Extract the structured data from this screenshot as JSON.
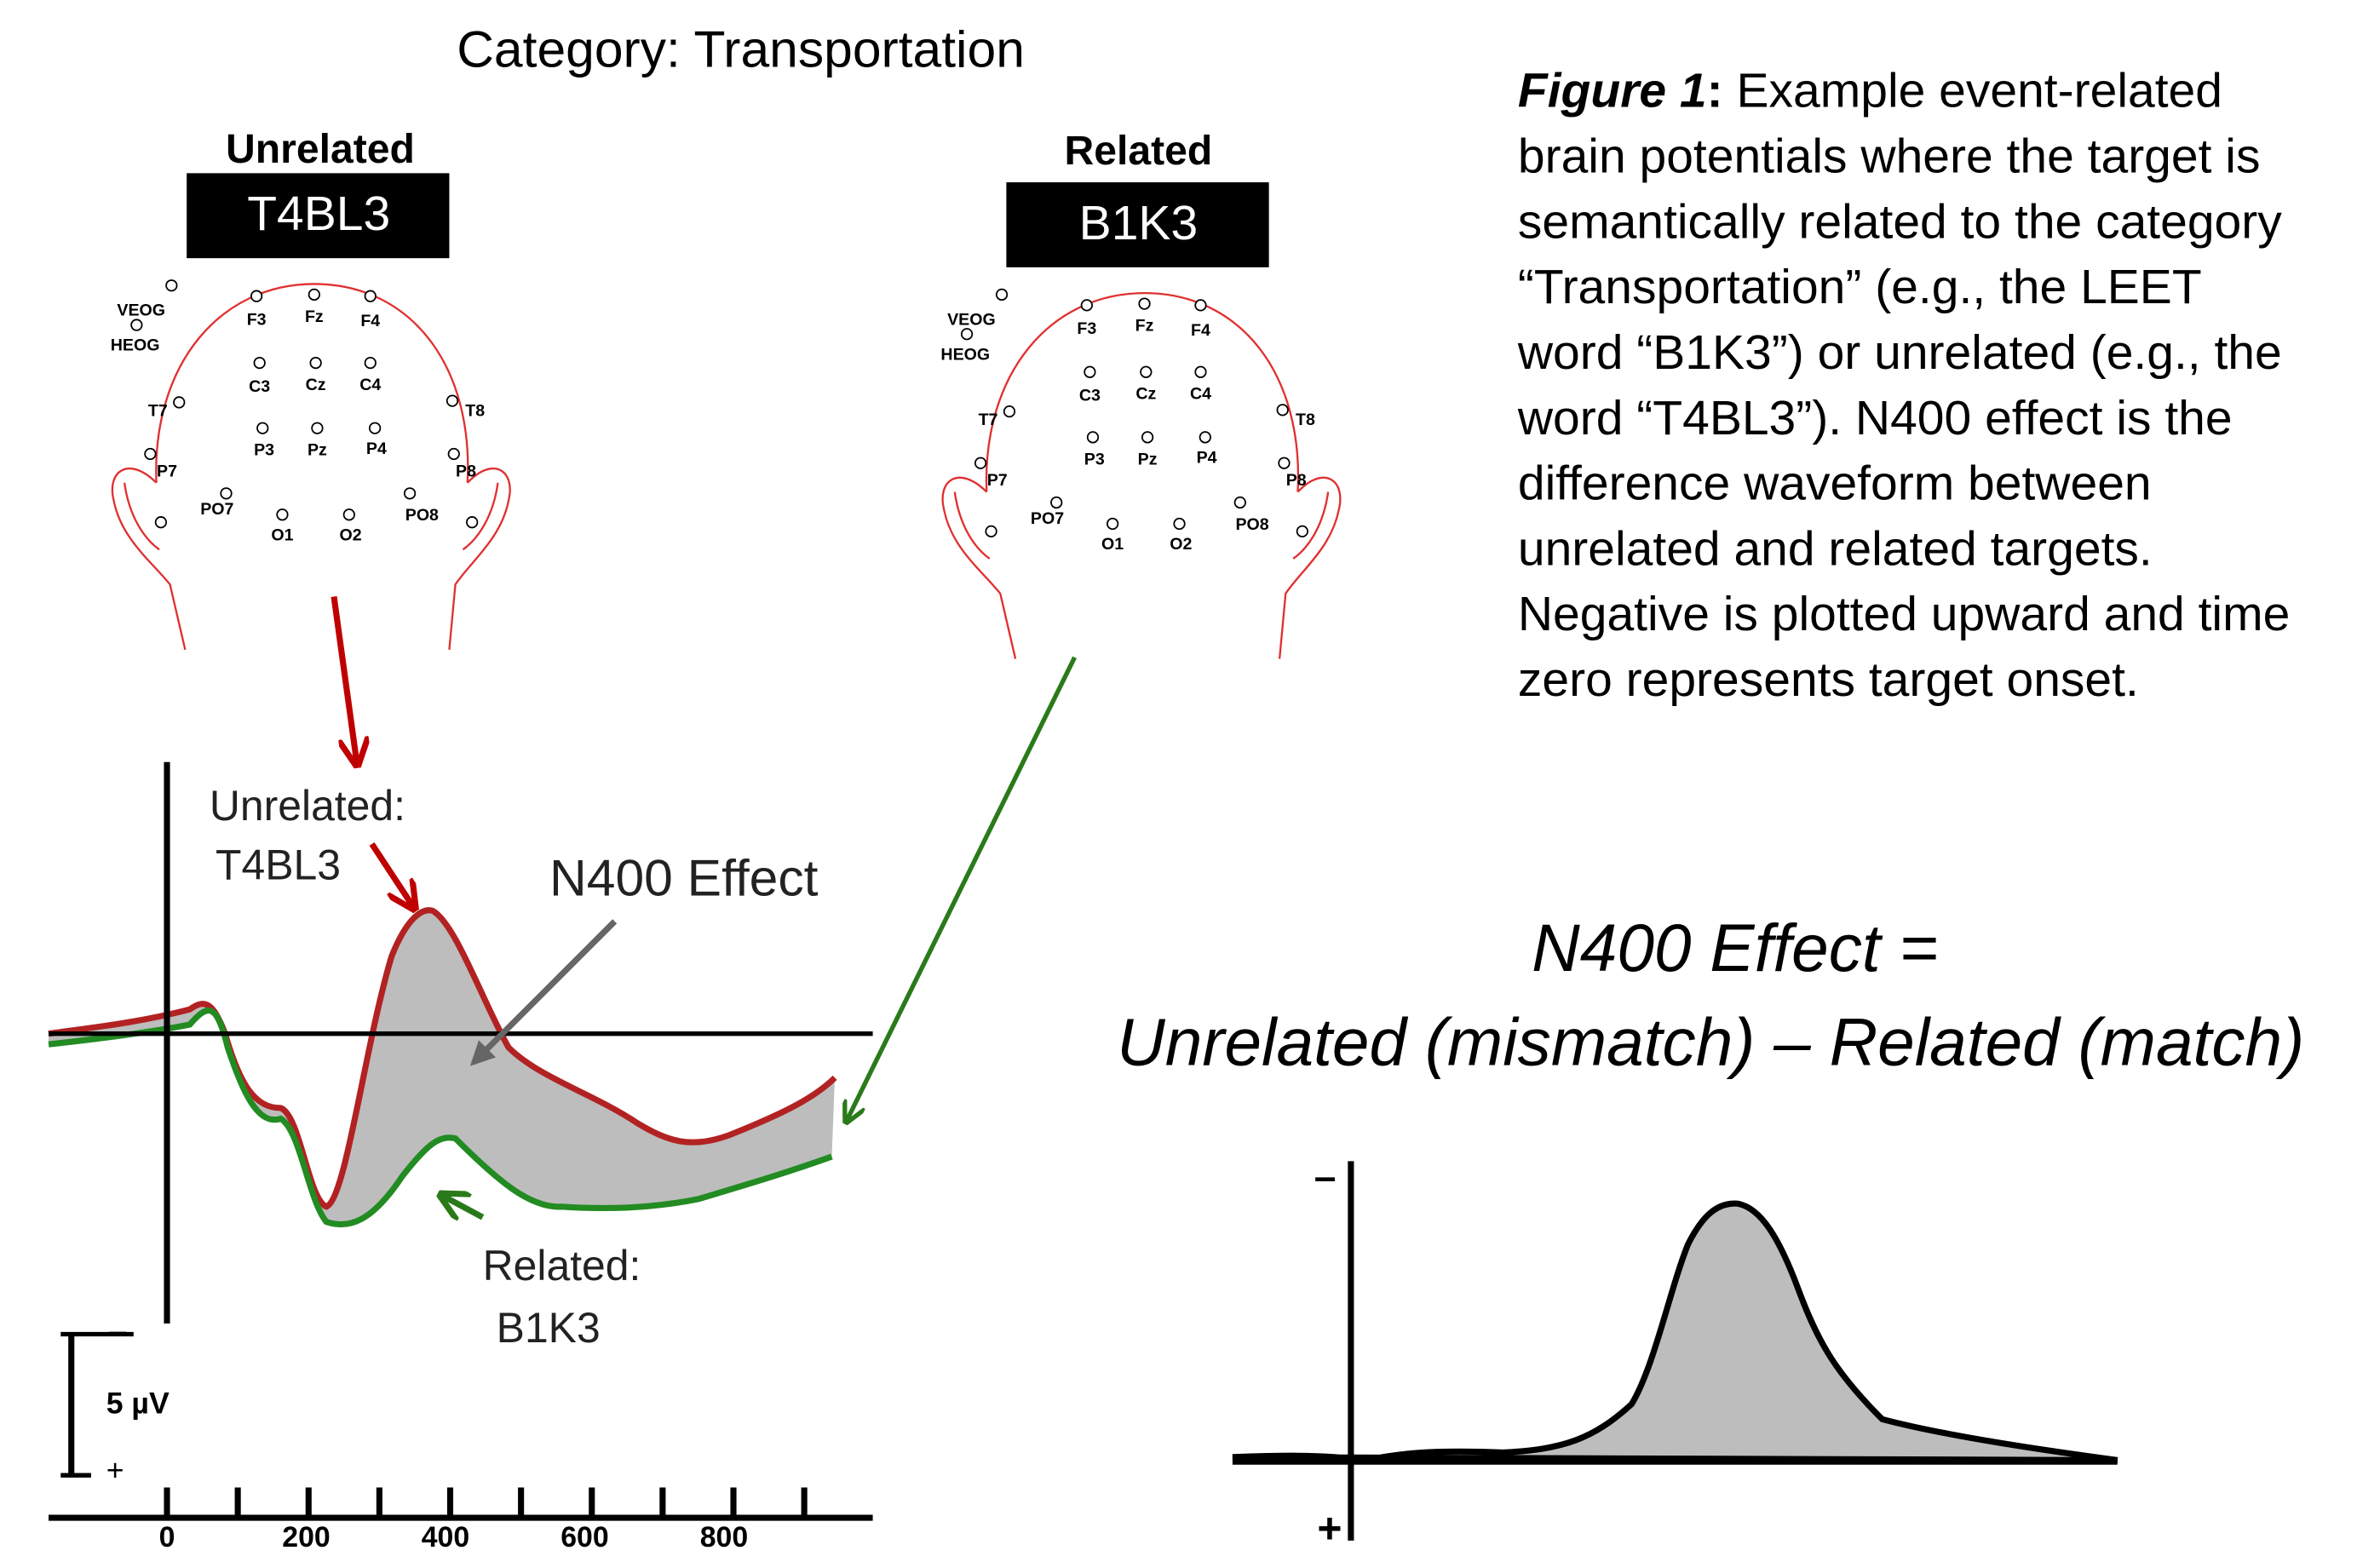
{
  "category_title": "Category: Transportation",
  "heads": [
    {
      "label": "Unrelated",
      "word": "T4BL3"
    },
    {
      "label": "Related",
      "word": "B1K3"
    }
  ],
  "electrodes": [
    "VEOG",
    "HEOG",
    "F3",
    "Fz",
    "F4",
    "C3",
    "Cz",
    "C4",
    "T7",
    "T8",
    "P3",
    "Pz",
    "P4",
    "P7",
    "P8",
    "PO7",
    "PO8",
    "O1",
    "O2"
  ],
  "erp": {
    "unrelated_label": "Unrelated:",
    "unrelated_word": "T4BL3",
    "effect_label": "N400 Effect",
    "related_label": "Related:",
    "related_word": "B1K3",
    "scale_label": "5 µV",
    "minus": "–",
    "plus": "+",
    "xticks": [
      0,
      200,
      400,
      600,
      800
    ]
  },
  "caption": {
    "label": "Figure 1",
    "separator": ":",
    "lines": [
      " Example event-related",
      "brain potentials where the target is",
      "semantically related to the category",
      "“Transportation” (e.g., the LEET",
      "word “B1K3”) or unrelated (e.g., the",
      "word “T4BL3”).  N400 effect is the",
      "difference waveform between",
      "unrelated and related targets.",
      "Negative is plotted upward and time",
      "zero represents target onset."
    ]
  },
  "equation": {
    "line1": "N400 Effect =",
    "line2": "Unrelated (mismatch) – Related (match)"
  },
  "difference": {
    "minus": "–",
    "plus": "+"
  }
}
